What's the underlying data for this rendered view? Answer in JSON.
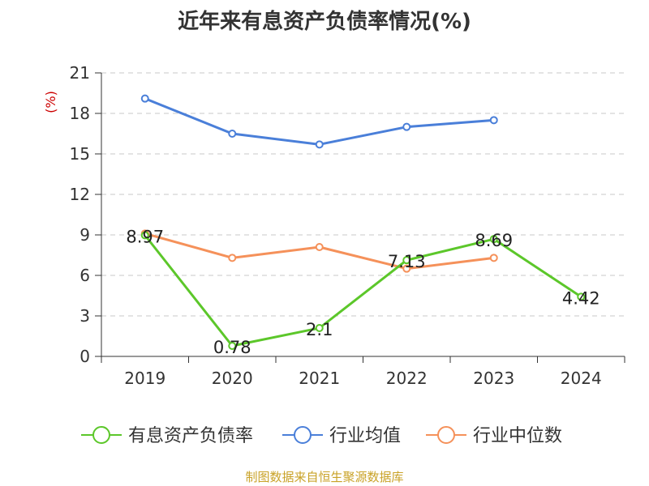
{
  "chart_data": {
    "type": "line",
    "title": "近年来有息资产负债率情况(%)",
    "ylabel": "(%)",
    "xlabel": "",
    "categories": [
      "2019",
      "2020",
      "2021",
      "2022",
      "2023",
      "2024"
    ],
    "ylim": [
      0,
      21
    ],
    "yticks": [
      0,
      3,
      6,
      9,
      12,
      15,
      18,
      21
    ],
    "grid": true,
    "legend": "bottom",
    "series": [
      {
        "name": "有息资产负债率",
        "color": "#5cc72a",
        "values": [
          8.97,
          0.78,
          2.1,
          7.13,
          8.69,
          4.42
        ],
        "labels": [
          "8.97",
          "0.78",
          "2.1",
          "7.13",
          "8.69",
          "4.42"
        ]
      },
      {
        "name": "行业均值",
        "color": "#4a7fd9",
        "values": [
          19.1,
          16.5,
          15.7,
          17.0,
          17.5,
          null
        ]
      },
      {
        "name": "行业中位数",
        "color": "#f5915a",
        "values": [
          9.1,
          7.3,
          8.1,
          6.5,
          7.3,
          null
        ]
      }
    ]
  },
  "source": "制图数据来自恒生聚源数据库",
  "ylabel_color": "#cc0000",
  "source_color": "#c9a227"
}
